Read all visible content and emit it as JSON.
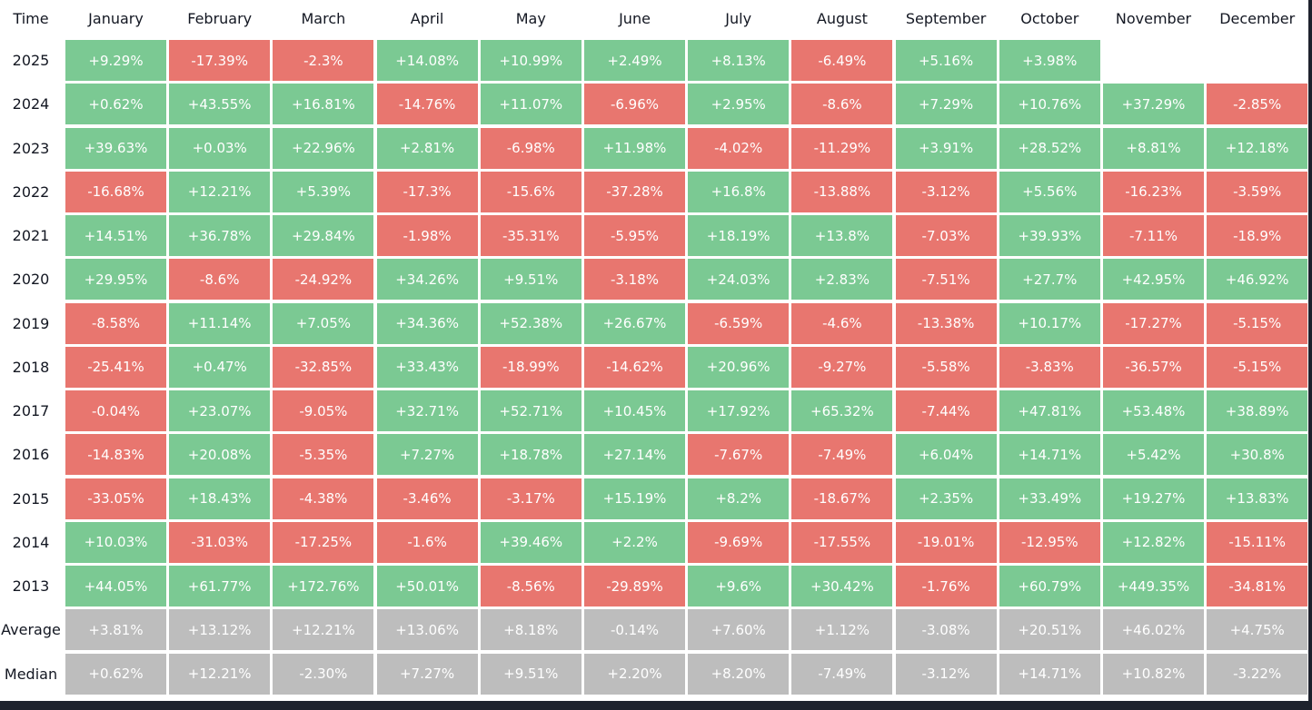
{
  "table": {
    "header": [
      "Time",
      "January",
      "February",
      "March",
      "April",
      "May",
      "June",
      "July",
      "August",
      "September",
      "October",
      "November",
      "December"
    ],
    "rows": [
      [
        "2025",
        "+9.29%",
        "-17.39%",
        "-2.3%",
        "+14.08%",
        "+10.99%",
        "+2.49%",
        "+8.13%",
        "-6.49%",
        "+5.16%",
        "+3.98%"
      ],
      [
        "2024",
        "+0.62%",
        "+43.55%",
        "+16.81%",
        "-14.76%",
        "+11.07%",
        "-6.96%",
        "+2.95%",
        "-8.6%",
        "+7.29%",
        "+10.76%",
        "+37.29%",
        "-2.85%"
      ],
      [
        "2023",
        "+39.63%",
        "+0.03%",
        "+22.96%",
        "+2.81%",
        "-6.98%",
        "+11.98%",
        "-4.02%",
        "-11.29%",
        "+3.91%",
        "+28.52%",
        "+8.81%",
        "+12.18%"
      ],
      [
        "2022",
        "-16.68%",
        "+12.21%",
        "+5.39%",
        "-17.3%",
        "-15.6%",
        "-37.28%",
        "+16.8%",
        "-13.88%",
        "-3.12%",
        "+5.56%",
        "-16.23%",
        "-3.59%"
      ],
      [
        "2021",
        "+14.51%",
        "+36.78%",
        "+29.84%",
        "-1.98%",
        "-35.31%",
        "-5.95%",
        "+18.19%",
        "+13.8%",
        "-7.03%",
        "+39.93%",
        "-7.11%",
        "-18.9%"
      ],
      [
        "2020",
        "+29.95%",
        "-8.6%",
        "-24.92%",
        "+34.26%",
        "+9.51%",
        "-3.18%",
        "+24.03%",
        "+2.83%",
        "-7.51%",
        "+27.7%",
        "+42.95%",
        "+46.92%"
      ],
      [
        "2019",
        "-8.58%",
        "+11.14%",
        "+7.05%",
        "+34.36%",
        "+52.38%",
        "+26.67%",
        "-6.59%",
        "-4.6%",
        "-13.38%",
        "+10.17%",
        "-17.27%",
        "-5.15%"
      ],
      [
        "2018",
        "-25.41%",
        "+0.47%",
        "-32.85%",
        "+33.43%",
        "-18.99%",
        "-14.62%",
        "+20.96%",
        "-9.27%",
        "-5.58%",
        "-3.83%",
        "-36.57%",
        "-5.15%"
      ],
      [
        "2017",
        "-0.04%",
        "+23.07%",
        "-9.05%",
        "+32.71%",
        "+52.71%",
        "+10.45%",
        "+17.92%",
        "+65.32%",
        "-7.44%",
        "+47.81%",
        "+53.48%",
        "+38.89%"
      ],
      [
        "2016",
        "-14.83%",
        "+20.08%",
        "-5.35%",
        "+7.27%",
        "+18.78%",
        "+27.14%",
        "-7.67%",
        "-7.49%",
        "+6.04%",
        "+14.71%",
        "+5.42%",
        "+30.8%"
      ],
      [
        "2015",
        "-33.05%",
        "+18.43%",
        "-4.38%",
        "-3.46%",
        "-3.17%",
        "+15.19%",
        "+8.2%",
        "-18.67%",
        "+2.35%",
        "+33.49%",
        "+19.27%",
        "+13.83%"
      ],
      [
        "2014",
        "+10.03%",
        "-31.03%",
        "-17.25%",
        "-1.6%",
        "+39.46%",
        "+2.2%",
        "-9.69%",
        "-17.55%",
        "-19.01%",
        "-12.95%",
        "+12.82%",
        "-15.11%"
      ],
      [
        "2013",
        "+44.05%",
        "+61.77%",
        "+172.76%",
        "+50.01%",
        "-8.56%",
        "-29.89%",
        "+9.6%",
        "+30.42%",
        "-1.76%",
        "+60.79%",
        "+449.35%",
        "-34.81%"
      ]
    ],
    "summary_rows": [
      [
        "Average",
        "+3.81%",
        "+13.12%",
        "+12.21%",
        "+13.06%",
        "+8.18%",
        "-0.14%",
        "+7.60%",
        "+1.12%",
        "-3.08%",
        "+20.51%",
        "+46.02%",
        "+4.75%"
      ],
      [
        "Median",
        "+0.62%",
        "+12.21%",
        "-2.30%",
        "+7.27%",
        "+9.51%",
        "+2.20%",
        "+8.20%",
        "-7.49%",
        "-3.12%",
        "+14.71%",
        "+10.82%",
        "-3.22%"
      ]
    ],
    "colors": {
      "positive": "#7bc993",
      "negative": "#e8766f",
      "summary": "#bdbdbd"
    }
  }
}
